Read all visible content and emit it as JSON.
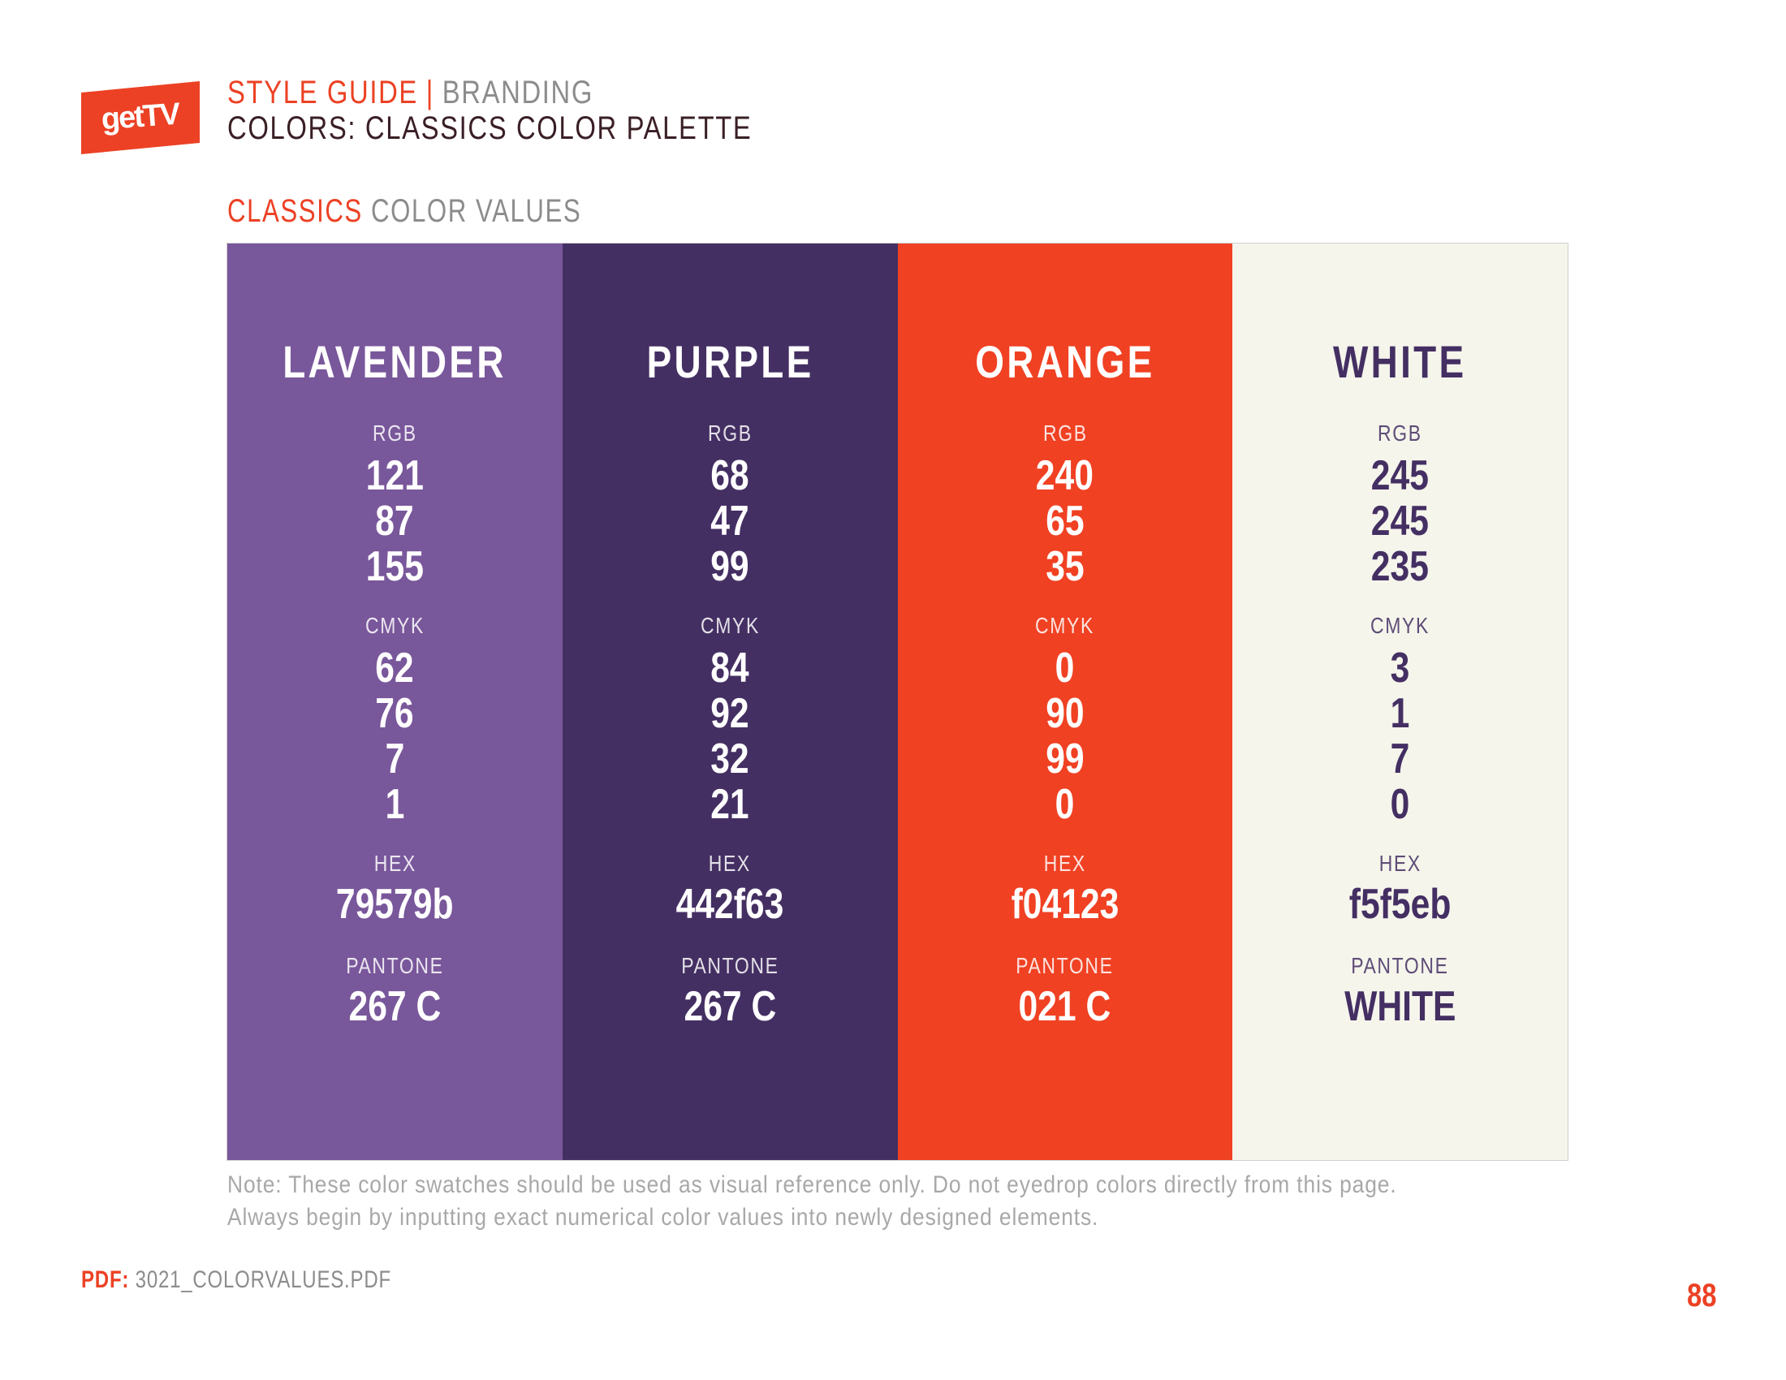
{
  "logo": {
    "text": "getTV",
    "background_color": "#ec4124"
  },
  "header": {
    "title": "STYLE GUIDE",
    "separator": "|",
    "category": "BRANDING",
    "subtitle": "COLORS: CLASSICS COLOR PALETTE"
  },
  "section": {
    "title_highlight": "CLASSICS",
    "title_rest": "COLOR VALUES"
  },
  "swatches": [
    {
      "name": "LAVENDER",
      "background": "#79579b",
      "text_color": "#ffffff",
      "rgb_label": "RGB",
      "rgb": [
        "121",
        "87",
        "155"
      ],
      "cmyk_label": "CMYK",
      "cmyk": [
        "62",
        "76",
        "7",
        "1"
      ],
      "hex_label": "HEX",
      "hex": "79579b",
      "pantone_label": "PANTONE",
      "pantone": "267 C"
    },
    {
      "name": "PURPLE",
      "background": "#442f63",
      "text_color": "#ffffff",
      "rgb_label": "RGB",
      "rgb": [
        "68",
        "47",
        "99"
      ],
      "cmyk_label": "CMYK",
      "cmyk": [
        "84",
        "92",
        "32",
        "21"
      ],
      "hex_label": "HEX",
      "hex": "442f63",
      "pantone_label": "PANTONE",
      "pantone": "267 C"
    },
    {
      "name": "ORANGE",
      "background": "#f04123",
      "text_color": "#ffffff",
      "rgb_label": "RGB",
      "rgb": [
        "240",
        "65",
        "35"
      ],
      "cmyk_label": "CMYK",
      "cmyk": [
        "0",
        "90",
        "99",
        "0"
      ],
      "hex_label": "HEX",
      "hex": "f04123",
      "pantone_label": "PANTONE",
      "pantone": "021 C"
    },
    {
      "name": "WHITE",
      "background": "#f5f5eb",
      "text_color": "#442f63",
      "rgb_label": "RGB",
      "rgb": [
        "245",
        "245",
        "235"
      ],
      "cmyk_label": "CMYK",
      "cmyk": [
        "3",
        "1",
        "7",
        "0"
      ],
      "hex_label": "HEX",
      "hex": "f5f5eb",
      "pantone_label": "PANTONE",
      "pantone": "WHITE"
    }
  ],
  "note": {
    "line1": "Note: These color swatches should be used as visual reference only. Do not eyedrop colors directly from this page.",
    "line2": "Always begin by inputting exact numerical color values into newly designed elements."
  },
  "footer": {
    "pdf_label": "PDF:",
    "pdf_filename": "3021_COLORVALUES.PDF",
    "page_number": "88"
  }
}
